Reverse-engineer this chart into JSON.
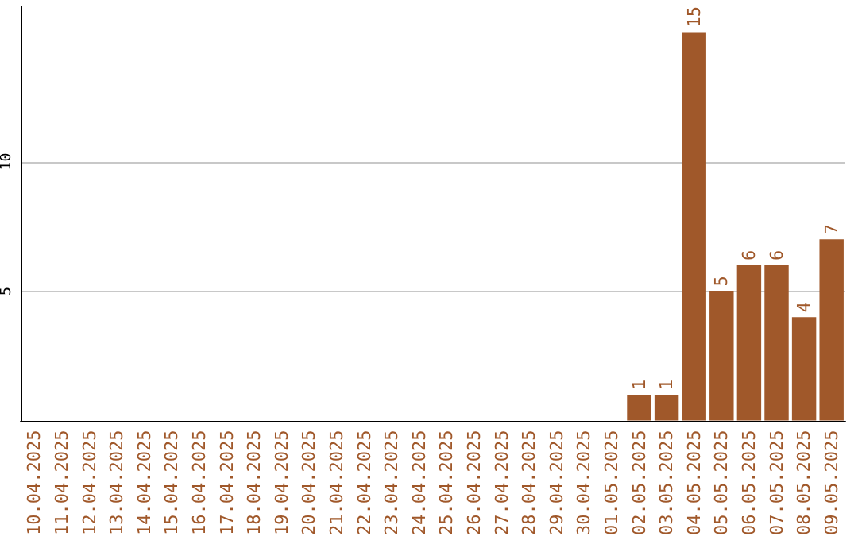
{
  "chart_data": {
    "type": "bar",
    "categories": [
      "10.04.2025",
      "11.04.2025",
      "12.04.2025",
      "13.04.2025",
      "14.04.2025",
      "15.04.2025",
      "16.04.2025",
      "17.04.2025",
      "18.04.2025",
      "19.04.2025",
      "20.04.2025",
      "21.04.2025",
      "22.04.2025",
      "23.04.2025",
      "24.04.2025",
      "25.04.2025",
      "26.04.2025",
      "27.04.2025",
      "28.04.2025",
      "29.04.2025",
      "30.04.2025",
      "01.05.2025",
      "02.05.2025",
      "03.05.2025",
      "04.05.2025",
      "05.05.2025",
      "06.05.2025",
      "07.05.2025",
      "08.05.2025",
      "09.05.2025"
    ],
    "values": [
      0,
      0,
      0,
      0,
      0,
      0,
      0,
      0,
      0,
      0,
      0,
      0,
      0,
      0,
      0,
      0,
      0,
      0,
      0,
      0,
      0,
      0,
      1,
      1,
      15,
      5,
      6,
      6,
      4,
      7
    ],
    "value_labels": [
      null,
      null,
      null,
      null,
      null,
      null,
      null,
      null,
      null,
      null,
      null,
      null,
      null,
      null,
      null,
      null,
      null,
      null,
      null,
      null,
      null,
      null,
      "1",
      "1",
      "15",
      "5",
      "6",
      "6",
      "4",
      "7"
    ],
    "color": "#a0582a",
    "ylim": [
      0,
      16
    ],
    "yticks": [
      5,
      10
    ],
    "grid": "y"
  }
}
